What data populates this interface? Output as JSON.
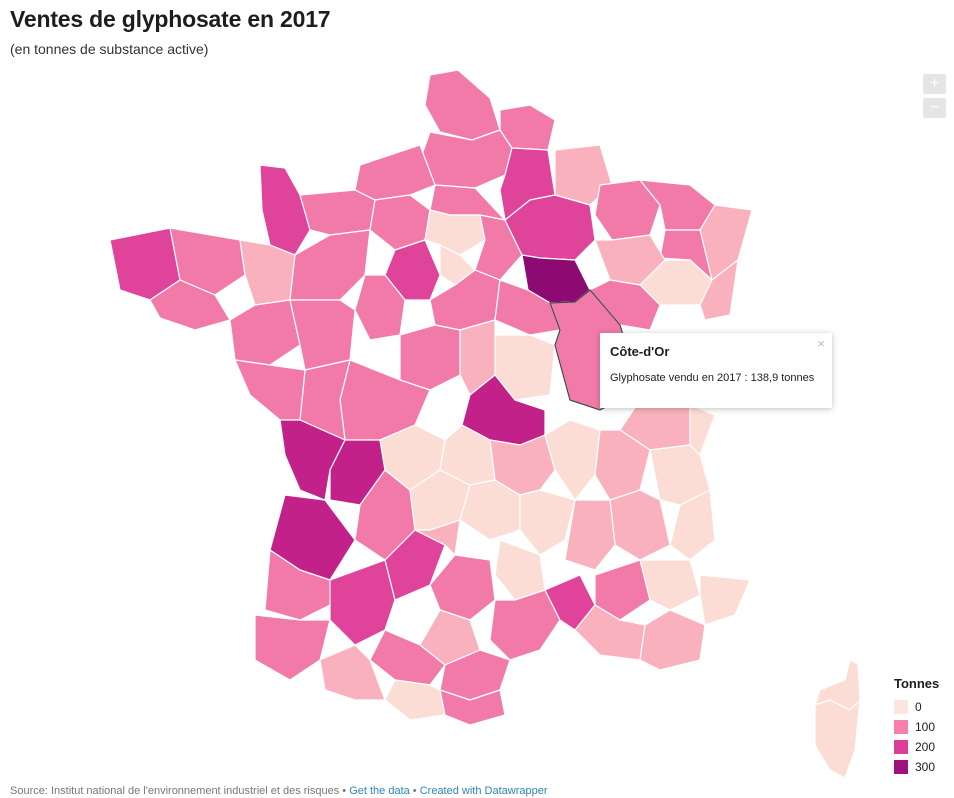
{
  "title": "Ventes de glyphosate en 2017",
  "subtitle": "(en tonnes de substance active)",
  "zoom": {
    "in_label": "+",
    "out_label": "−"
  },
  "tooltip": {
    "title": "Côte-d'Or",
    "text": "Glyphosate vendu en 2017 : 138,9 tonnes",
    "close": "×"
  },
  "legend": {
    "title": "Tonnes",
    "items": [
      {
        "label": "0",
        "color": "#fbe6e0"
      },
      {
        "label": "100",
        "color": "#f77fab"
      },
      {
        "label": "200",
        "color": "#db3f9a"
      },
      {
        "label": "300",
        "color": "#a1117d"
      }
    ]
  },
  "footer": {
    "source": "Source: Institut national de l'environnement industriel et des risques",
    "sep1": " • ",
    "get_data": "Get the data",
    "sep2": " • ",
    "created": "Created with Datawrapper"
  },
  "colors": {
    "very_light": "#fcddd6",
    "light": "#f9b2bd",
    "medium": "#f27aa8",
    "strong": "#e0449a",
    "high": "#c2218a",
    "highest": "#8c0a72"
  }
}
